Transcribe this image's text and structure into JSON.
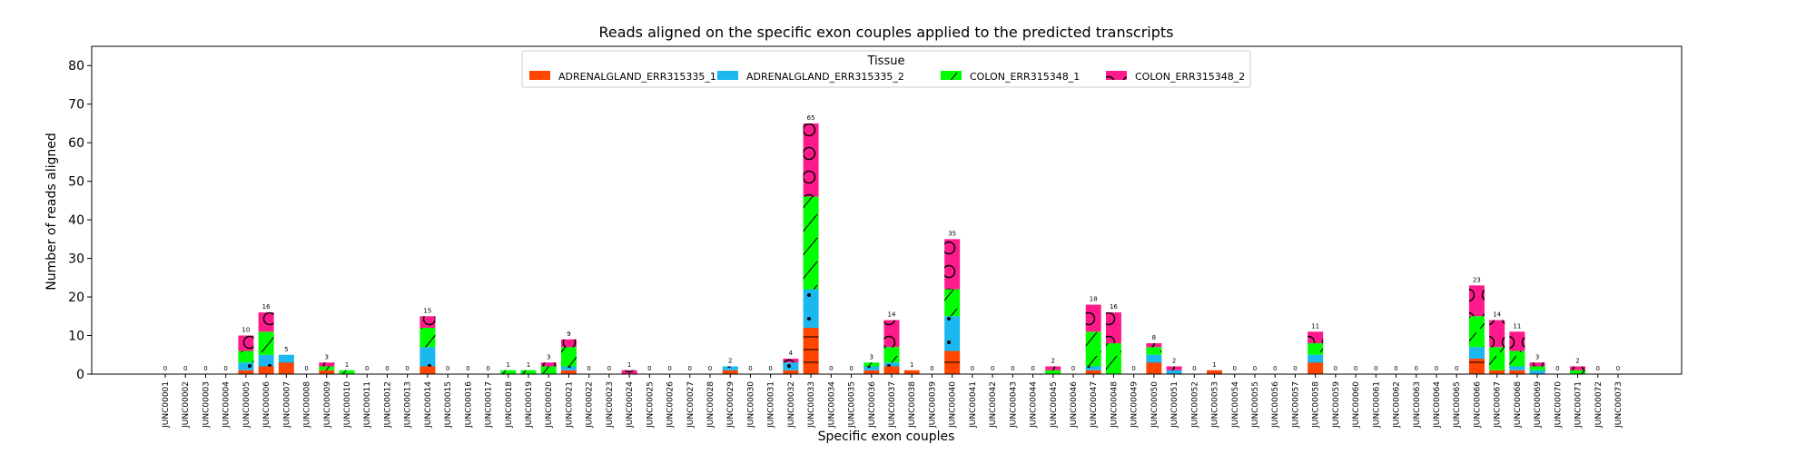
{
  "chart_data": {
    "type": "bar",
    "stacked": true,
    "title": "Reads aligned on the specific exon couples applied to the predicted transcripts",
    "xlabel": "Specific exon couples",
    "ylabel": "Number of reads aligned",
    "ylim": [
      0,
      85
    ],
    "yticks": [
      0,
      10,
      20,
      30,
      40,
      50,
      60,
      70,
      80
    ],
    "legend": {
      "title": "Tissue",
      "placement": "top-center",
      "ncol": 4
    },
    "categories": [
      "JUNC00001",
      "JUNC00002",
      "JUNC00003",
      "JUNC00004",
      "JUNC00005",
      "JUNC00006",
      "JUNC00007",
      "JUNC00008",
      "JUNC00009",
      "JUNC00010",
      "JUNC00011",
      "JUNC00012",
      "JUNC00013",
      "JUNC00014",
      "JUNC00015",
      "JUNC00016",
      "JUNC00017",
      "JUNC00018",
      "JUNC00019",
      "JUNC00020",
      "JUNC00021",
      "JUNC00022",
      "JUNC00023",
      "JUNC00024",
      "JUNC00025",
      "JUNC00026",
      "JUNC00027",
      "JUNC00028",
      "JUNC00029",
      "JUNC00030",
      "JUNC00031",
      "JUNC00032",
      "JUNC00033",
      "JUNC00034",
      "JUNC00035",
      "JUNC00036",
      "JUNC00037",
      "JUNC00038",
      "JUNC00039",
      "JUNC00040",
      "JUNC00041",
      "JUNC00042",
      "JUNC00043",
      "JUNC00044",
      "JUNC00045",
      "JUNC00046",
      "JUNC00047",
      "JUNC00048",
      "JUNC00049",
      "JUNC00050",
      "JUNC00051",
      "JUNC00052",
      "JUNC00053",
      "JUNC00054",
      "JUNC00055",
      "JUNC00056",
      "JUNC00057",
      "JUNC00058",
      "JUNC00059",
      "JUNC00060",
      "JUNC00061",
      "JUNC00062",
      "JUNC00063",
      "JUNC00064",
      "JUNC00065",
      "JUNC00066",
      "JUNC00067",
      "JUNC00068",
      "JUNC00069",
      "JUNC00070",
      "JUNC00071",
      "JUNC00072",
      "JUNC00073"
    ],
    "series": [
      {
        "name": "ADRENALGLAND_ERR315335_1",
        "color": "#ff4500",
        "hatch": "hlines",
        "values": [
          0,
          0,
          0,
          0,
          1,
          2,
          3,
          0,
          1,
          0,
          0,
          0,
          0,
          2,
          0,
          0,
          0,
          0,
          0,
          0,
          1,
          0,
          0,
          0,
          0,
          0,
          0,
          0,
          1,
          0,
          0,
          1,
          12,
          0,
          0,
          1,
          2,
          1,
          0,
          6,
          0,
          0,
          0,
          0,
          0,
          0,
          1,
          0,
          0,
          3,
          0,
          0,
          1,
          0,
          0,
          0,
          0,
          3,
          0,
          0,
          0,
          0,
          0,
          0,
          0,
          4,
          1,
          1,
          0,
          0,
          0,
          0,
          0
        ]
      },
      {
        "name": "ADRENALGLAND_ERR315335_2",
        "color": "#1ab8ee",
        "hatch": "dots",
        "values": [
          0,
          0,
          0,
          0,
          2,
          3,
          2,
          0,
          0,
          0,
          0,
          0,
          0,
          5,
          0,
          0,
          0,
          0,
          0,
          0,
          1,
          0,
          0,
          0,
          0,
          0,
          0,
          0,
          1,
          0,
          0,
          2,
          10,
          0,
          0,
          1,
          1,
          0,
          0,
          9,
          0,
          0,
          0,
          0,
          0,
          0,
          1,
          0,
          0,
          2,
          1,
          0,
          0,
          0,
          0,
          0,
          0,
          2,
          0,
          0,
          0,
          0,
          0,
          0,
          0,
          3,
          0,
          1,
          1,
          0,
          0,
          0,
          0
        ]
      },
      {
        "name": "COLON_ERR315348_1",
        "color": "#00ff00",
        "hatch": "slash",
        "values": [
          0,
          0,
          0,
          0,
          3,
          6,
          0,
          0,
          1,
          1,
          0,
          0,
          0,
          5,
          0,
          0,
          0,
          1,
          1,
          2,
          5,
          0,
          0,
          0,
          0,
          0,
          0,
          0,
          0,
          0,
          0,
          0,
          24,
          0,
          0,
          1,
          4,
          0,
          0,
          7,
          0,
          0,
          0,
          0,
          1,
          0,
          9,
          8,
          0,
          2,
          0,
          0,
          0,
          0,
          0,
          0,
          0,
          3,
          0,
          0,
          0,
          0,
          0,
          0,
          0,
          8,
          6,
          4,
          1,
          0,
          1,
          0,
          0
        ]
      },
      {
        "name": "COLON_ERR315348_2",
        "color": "#ff1a8c",
        "hatch": "circles",
        "values": [
          0,
          0,
          0,
          0,
          4,
          5,
          0,
          0,
          1,
          0,
          0,
          0,
          0,
          3,
          0,
          0,
          0,
          0,
          0,
          1,
          2,
          0,
          0,
          1,
          0,
          0,
          0,
          0,
          0,
          0,
          0,
          1,
          19,
          0,
          0,
          0,
          7,
          0,
          0,
          13,
          0,
          0,
          0,
          0,
          1,
          0,
          7,
          8,
          0,
          1,
          1,
          0,
          0,
          0,
          0,
          0,
          0,
          3,
          0,
          0,
          0,
          0,
          0,
          0,
          0,
          8,
          7,
          5,
          1,
          0,
          1,
          0,
          0
        ]
      }
    ],
    "totals": [
      0,
      0,
      0,
      0,
      10,
      16,
      5,
      0,
      3,
      1,
      0,
      0,
      0,
      15,
      0,
      0,
      0,
      1,
      1,
      3,
      9,
      0,
      0,
      1,
      0,
      0,
      0,
      0,
      2,
      0,
      0,
      4,
      65,
      0,
      0,
      3,
      14,
      1,
      0,
      35,
      0,
      0,
      0,
      0,
      2,
      0,
      18,
      16,
      0,
      8,
      2,
      0,
      1,
      0,
      0,
      0,
      0,
      11,
      0,
      0,
      0,
      0,
      0,
      0,
      0,
      23,
      14,
      11,
      3,
      0,
      2,
      0,
      0
    ]
  }
}
